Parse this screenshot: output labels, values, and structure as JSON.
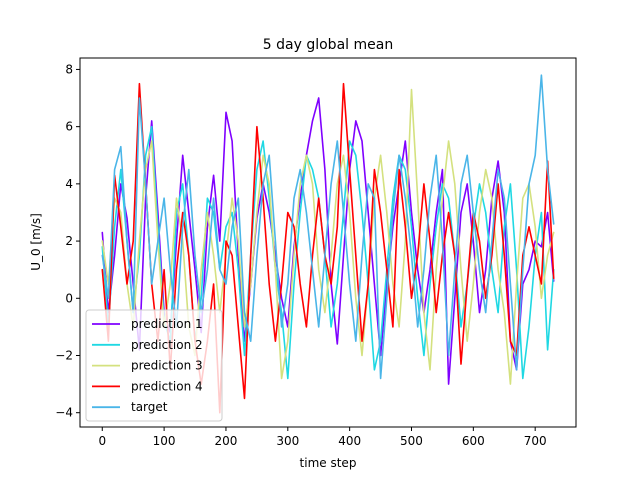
{
  "chart_data": {
    "type": "line",
    "title": "5 day global mean",
    "xlabel": "time step",
    "ylabel": "U_0 [m/s]",
    "xlim": [
      -36,
      766
    ],
    "ylim": [
      -4.5,
      8.4
    ],
    "xticks": [
      0,
      100,
      200,
      300,
      400,
      500,
      600,
      700
    ],
    "yticks": [
      -4,
      -2,
      0,
      2,
      4,
      6,
      8
    ],
    "legend_position": "lower-left",
    "series": [
      {
        "name": "prediction 1",
        "color": "#7f00ff",
        "x": [
          0,
          10,
          20,
          30,
          40,
          50,
          60,
          70,
          80,
          90,
          100,
          110,
          120,
          130,
          140,
          150,
          160,
          170,
          180,
          190,
          200,
          210,
          220,
          230,
          240,
          250,
          260,
          270,
          280,
          290,
          300,
          310,
          320,
          330,
          340,
          350,
          360,
          370,
          380,
          390,
          400,
          410,
          420,
          430,
          440,
          450,
          460,
          470,
          480,
          490,
          500,
          510,
          520,
          530,
          540,
          550,
          560,
          570,
          580,
          590,
          600,
          610,
          620,
          630,
          640,
          650,
          660,
          670,
          680,
          690,
          700,
          710,
          720,
          730
        ],
        "y": [
          2.3,
          -0.5,
          1.5,
          4.0,
          2.8,
          0.5,
          -1.8,
          3.5,
          6.2,
          3.0,
          -0.5,
          -1.2,
          2.0,
          5.0,
          3.0,
          1.0,
          -1.2,
          2.5,
          4.3,
          2.0,
          6.5,
          5.5,
          1.5,
          -1.5,
          0.5,
          2.8,
          4.0,
          3.0,
          1.5,
          0.0,
          -1.0,
          1.8,
          3.5,
          5.0,
          6.2,
          7.0,
          4.5,
          0.5,
          -1.6,
          1.5,
          4.5,
          6.2,
          5.5,
          3.0,
          0.5,
          -2.0,
          0.5,
          2.5,
          4.0,
          5.5,
          3.0,
          1.0,
          -0.5,
          1.0,
          3.0,
          4.5,
          -3.0,
          0.0,
          3.0,
          4.0,
          2.0,
          -0.5,
          1.0,
          3.5,
          4.8,
          3.0,
          -1.5,
          -2.5,
          0.5,
          1.0,
          2.0,
          1.8,
          3.0,
          0.6
        ]
      },
      {
        "name": "prediction 2",
        "color": "#1fd8e3",
        "x": [
          0,
          10,
          20,
          30,
          40,
          50,
          60,
          70,
          80,
          90,
          100,
          110,
          120,
          130,
          140,
          150,
          160,
          170,
          180,
          190,
          200,
          210,
          220,
          230,
          240,
          250,
          260,
          270,
          280,
          290,
          300,
          310,
          320,
          330,
          340,
          350,
          360,
          370,
          380,
          390,
          400,
          410,
          420,
          430,
          440,
          450,
          460,
          470,
          480,
          490,
          500,
          510,
          520,
          530,
          540,
          550,
          560,
          570,
          580,
          590,
          600,
          610,
          620,
          630,
          640,
          650,
          660,
          670,
          680,
          690,
          700,
          710,
          720,
          730
        ],
        "y": [
          1.8,
          -1.0,
          2.5,
          4.5,
          2.0,
          -0.5,
          1.5,
          5.0,
          6.0,
          2.5,
          -0.8,
          -1.5,
          3.0,
          4.0,
          1.5,
          -1.5,
          0.0,
          3.5,
          3.0,
          1.0,
          2.5,
          3.0,
          1.0,
          -2.0,
          1.5,
          4.5,
          5.5,
          3.5,
          1.0,
          -0.5,
          -2.8,
          0.5,
          3.0,
          5.0,
          4.5,
          3.5,
          1.5,
          -1.0,
          0.5,
          3.0,
          5.5,
          5.0,
          3.0,
          0.5,
          -2.5,
          -1.5,
          1.0,
          3.5,
          5.0,
          4.5,
          2.5,
          0.0,
          -2.0,
          0.5,
          2.5,
          4.0,
          3.5,
          1.5,
          -1.0,
          0.5,
          2.5,
          4.0,
          3.0,
          1.0,
          -0.5,
          2.5,
          4.0,
          1.0,
          -2.8,
          -1.0,
          1.5,
          3.0,
          -1.8,
          1.0
        ]
      },
      {
        "name": "prediction 3",
        "color": "#d4e17f",
        "x": [
          0,
          10,
          20,
          30,
          40,
          50,
          60,
          70,
          80,
          90,
          100,
          110,
          120,
          130,
          140,
          150,
          160,
          170,
          180,
          190,
          200,
          210,
          220,
          230,
          240,
          250,
          260,
          270,
          280,
          290,
          300,
          310,
          320,
          330,
          340,
          350,
          360,
          370,
          380,
          390,
          400,
          410,
          420,
          430,
          440,
          450,
          460,
          470,
          480,
          490,
          500,
          510,
          520,
          530,
          540,
          550,
          560,
          570,
          580,
          590,
          600,
          610,
          620,
          630,
          640,
          650,
          660,
          670,
          680,
          690,
          700,
          710,
          720,
          730
        ],
        "y": [
          2.0,
          0.5,
          3.5,
          3.0,
          0.5,
          -1.0,
          2.0,
          4.5,
          5.5,
          2.0,
          -1.0,
          0.5,
          3.5,
          2.0,
          -1.0,
          -2.0,
          1.0,
          3.0,
          1.5,
          -0.5,
          1.5,
          3.5,
          2.0,
          -1.0,
          0.5,
          3.0,
          5.0,
          4.0,
          1.0,
          -2.8,
          -1.5,
          1.5,
          4.0,
          5.0,
          4.0,
          1.0,
          -0.5,
          1.5,
          4.0,
          5.0,
          3.0,
          0.0,
          -2.0,
          0.5,
          3.5,
          5.0,
          3.0,
          0.5,
          -1.0,
          2.0,
          7.3,
          3.5,
          -0.5,
          -2.5,
          1.0,
          3.5,
          5.5,
          4.0,
          1.0,
          -1.5,
          0.5,
          3.0,
          4.5,
          3.5,
          1.0,
          -0.5,
          -3.0,
          0.5,
          3.5,
          4.0,
          2.5,
          0.0,
          1.5,
          2.3
        ]
      },
      {
        "name": "prediction 4",
        "color": "#ff0000",
        "x": [
          0,
          10,
          20,
          30,
          40,
          50,
          60,
          70,
          80,
          90,
          100,
          110,
          120,
          130,
          140,
          150,
          160,
          170,
          180,
          190,
          200,
          210,
          220,
          230,
          240,
          250,
          260,
          270,
          280,
          290,
          300,
          310,
          320,
          330,
          340,
          350,
          360,
          370,
          380,
          390,
          400,
          410,
          420,
          430,
          440,
          450,
          460,
          470,
          480,
          490,
          500,
          510,
          520,
          530,
          540,
          550,
          560,
          570,
          580,
          590,
          600,
          610,
          620,
          630,
          640,
          650,
          660,
          670,
          680,
          690,
          700,
          710,
          720,
          730
        ],
        "y": [
          1.0,
          -1.5,
          4.3,
          2.5,
          0.5,
          2.0,
          7.5,
          4.0,
          0.5,
          -1.5,
          1.0,
          -2.5,
          1.0,
          3.0,
          1.5,
          -1.5,
          -3.0,
          -1.5,
          0.5,
          -4.0,
          2.0,
          1.5,
          -1.0,
          -3.5,
          1.5,
          6.0,
          3.5,
          0.5,
          -1.5,
          0.5,
          3.0,
          2.5,
          0.5,
          -1.0,
          1.5,
          3.5,
          1.5,
          0.5,
          2.5,
          7.5,
          4.5,
          1.5,
          -1.5,
          0.5,
          4.5,
          3.0,
          1.0,
          -1.0,
          4.5,
          2.5,
          0.0,
          1.5,
          4.0,
          2.0,
          -0.5,
          1.5,
          3.0,
          1.5,
          -2.3,
          0.5,
          3.0,
          2.0,
          0.0,
          1.5,
          4.0,
          1.5,
          -1.5,
          -2.0,
          1.5,
          2.5,
          1.5,
          0.5,
          4.8,
          0.7
        ]
      },
      {
        "name": "target",
        "color": "#4ab5e8",
        "x": [
          0,
          10,
          20,
          30,
          40,
          50,
          60,
          70,
          80,
          90,
          100,
          110,
          120,
          130,
          140,
          150,
          160,
          170,
          180,
          190,
          200,
          210,
          220,
          230,
          240,
          250,
          260,
          270,
          280,
          290,
          300,
          310,
          320,
          330,
          340,
          350,
          360,
          370,
          380,
          390,
          400,
          410,
          420,
          430,
          440,
          450,
          460,
          470,
          480,
          490,
          500,
          510,
          520,
          530,
          540,
          550,
          560,
          570,
          580,
          590,
          600,
          610,
          620,
          630,
          640,
          650,
          660,
          670,
          680,
          690,
          700,
          710,
          720,
          730
        ],
        "y": [
          1.5,
          0.0,
          4.5,
          5.3,
          2.0,
          -0.5,
          7.0,
          4.0,
          0.5,
          2.0,
          3.5,
          1.0,
          -1.0,
          2.5,
          4.5,
          1.5,
          -0.5,
          1.0,
          3.5,
          1.0,
          0.5,
          2.5,
          3.5,
          -0.5,
          -1.5,
          1.5,
          4.0,
          5.0,
          2.0,
          -1.0,
          0.5,
          3.5,
          4.5,
          3.0,
          1.0,
          -1.0,
          1.5,
          4.0,
          5.5,
          3.0,
          0.5,
          -1.5,
          1.5,
          4.0,
          3.5,
          -2.8,
          0.0,
          3.0,
          5.0,
          3.5,
          1.5,
          -1.0,
          1.0,
          3.5,
          5.0,
          2.0,
          -2.0,
          1.0,
          4.0,
          5.0,
          3.0,
          1.0,
          -0.5,
          2.0,
          4.5,
          3.5,
          0.5,
          -2.5,
          1.0,
          4.0,
          5.0,
          7.8,
          4.5,
          2.6
        ]
      }
    ]
  }
}
